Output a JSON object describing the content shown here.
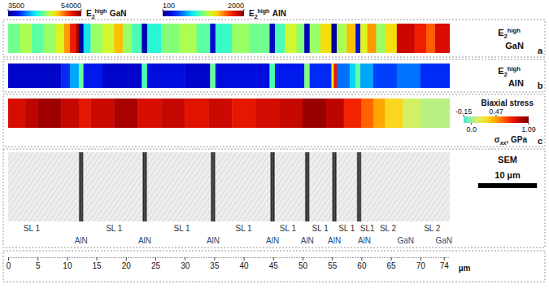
{
  "chart_data": {
    "type": "heatmap",
    "xlim": [
      0,
      75
    ],
    "xticks": [
      0,
      5,
      10,
      15,
      20,
      25,
      30,
      35,
      40,
      45,
      50,
      55,
      60,
      65,
      70,
      74
    ],
    "x_label": "µm",
    "panels": [
      {
        "letter": "a",
        "label": {
          "base": "E",
          "sub": "2",
          "sup": "high",
          "name": "GaN"
        },
        "color_range": [
          3500,
          54000
        ],
        "color_ticks": [
          3500,
          54000
        ],
        "cells": [
          [
            0,
            2,
            28000
          ],
          [
            2,
            4,
            31000
          ],
          [
            4,
            6,
            27000
          ],
          [
            6,
            8,
            30000
          ],
          [
            8,
            9.5,
            34000
          ],
          [
            9.5,
            10.5,
            40000
          ],
          [
            10.5,
            11.5,
            47000
          ],
          [
            11.5,
            12,
            52000
          ],
          [
            12,
            12.8,
            5000
          ],
          [
            12.8,
            14,
            22000
          ],
          [
            14,
            16,
            30000
          ],
          [
            16,
            18,
            33000
          ],
          [
            18,
            19.5,
            38000
          ],
          [
            19.5,
            21,
            30000
          ],
          [
            21,
            22.7,
            26000
          ],
          [
            22.7,
            23.6,
            6000
          ],
          [
            23.6,
            26,
            24000
          ],
          [
            26,
            29,
            29000
          ],
          [
            29,
            32,
            31000
          ],
          [
            32,
            34.3,
            27000
          ],
          [
            34.3,
            35.2,
            8000
          ],
          [
            35.2,
            38,
            25000
          ],
          [
            38,
            41,
            30000
          ],
          [
            41,
            44.4,
            28000
          ],
          [
            44.4,
            45.3,
            7000
          ],
          [
            45.3,
            47,
            26000
          ],
          [
            47,
            49,
            33000
          ],
          [
            49,
            50.3,
            29000
          ],
          [
            50.3,
            51.2,
            6000
          ],
          [
            51.2,
            53,
            30000
          ],
          [
            53,
            54.9,
            36000
          ],
          [
            54.9,
            55.8,
            5000
          ],
          [
            55.8,
            57.5,
            31000
          ],
          [
            57.5,
            59,
            38000
          ],
          [
            59,
            59.8,
            9000
          ],
          [
            59.8,
            61,
            34000
          ],
          [
            61,
            62.5,
            40000
          ],
          [
            62.5,
            64,
            30000
          ],
          [
            64,
            66,
            36000
          ],
          [
            66,
            69,
            50000
          ],
          [
            69,
            71,
            47000
          ],
          [
            71,
            72.5,
            43000
          ],
          [
            72.5,
            75,
            49000
          ]
        ]
      },
      {
        "letter": "b",
        "label": {
          "base": "E",
          "sub": "2",
          "sup": "high",
          "name": "AlN"
        },
        "color_range": [
          100,
          2000
        ],
        "color_ticks": [
          100,
          2000
        ],
        "cells": [
          [
            0,
            9,
            250
          ],
          [
            9,
            10.5,
            400
          ],
          [
            10.5,
            12,
            650
          ],
          [
            12,
            12.8,
            1000
          ],
          [
            12.8,
            16,
            350
          ],
          [
            16,
            22.7,
            250
          ],
          [
            22.7,
            23.6,
            950
          ],
          [
            23.6,
            30,
            300
          ],
          [
            30,
            34.3,
            250
          ],
          [
            34.3,
            35.2,
            1000
          ],
          [
            35.2,
            44.4,
            300
          ],
          [
            44.4,
            45.3,
            950
          ],
          [
            45.3,
            50.3,
            350
          ],
          [
            50.3,
            51.2,
            1050
          ],
          [
            51.2,
            54.9,
            400
          ],
          [
            54.9,
            55.3,
            1300
          ],
          [
            55.3,
            55.8,
            1750
          ],
          [
            55.8,
            58,
            550
          ],
          [
            58,
            59,
            750
          ],
          [
            59,
            59.8,
            1000
          ],
          [
            59.8,
            62,
            650
          ],
          [
            62,
            66,
            450
          ],
          [
            66,
            70,
            550
          ],
          [
            70,
            75,
            400
          ]
        ]
      },
      {
        "letter": "c",
        "title": "Biaxial stress",
        "unit": {
          "base": "σ",
          "sub": "xx",
          "rest": ", GPa"
        },
        "color_range": [
          -0.15,
          1.09
        ],
        "color_ticks": [
          -0.15,
          {
            "value": 0,
            "label": "0.0"
          },
          0.47,
          1.09
        ],
        "cells": [
          [
            0,
            3,
            0.85
          ],
          [
            3,
            5,
            0.92
          ],
          [
            5,
            9,
            1.0
          ],
          [
            9,
            12,
            0.9
          ],
          [
            12,
            14,
            0.8
          ],
          [
            14,
            18,
            0.88
          ],
          [
            18,
            22,
            0.98
          ],
          [
            22,
            26,
            0.85
          ],
          [
            26,
            30,
            0.9
          ],
          [
            30,
            34,
            0.82
          ],
          [
            34,
            38,
            0.88
          ],
          [
            38,
            42,
            0.8
          ],
          [
            42,
            46,
            0.86
          ],
          [
            46,
            50,
            0.9
          ],
          [
            50,
            54,
            1.02
          ],
          [
            54,
            57,
            0.92
          ],
          [
            57,
            60,
            0.75
          ],
          [
            60,
            62,
            0.6
          ],
          [
            62,
            64,
            0.45
          ],
          [
            64,
            67,
            0.3
          ],
          [
            67,
            70,
            0.12
          ],
          [
            70,
            75,
            0.05
          ]
        ]
      }
    ],
    "sem": {
      "title": "SEM",
      "scale_bar": {
        "length": 10,
        "label": "10 µm"
      },
      "interlayers": [
        [
          12,
          12.8
        ],
        [
          22.8,
          23.6
        ],
        [
          34.4,
          35.2
        ],
        [
          44.5,
          45.3
        ],
        [
          50.4,
          51.2
        ],
        [
          55,
          55.8
        ],
        [
          59.2,
          60
        ]
      ],
      "labels": [
        {
          "text": "SL 1",
          "x": 4,
          "row": 1
        },
        {
          "text": "SL 1",
          "x": 18,
          "row": 1
        },
        {
          "text": "SL 1",
          "x": 29.5,
          "row": 1
        },
        {
          "text": "SL 1",
          "x": 40,
          "row": 1
        },
        {
          "text": "SL 1",
          "x": 47.5,
          "row": 1
        },
        {
          "text": "SL 1",
          "x": 53,
          "row": 1
        },
        {
          "text": "SL 1",
          "x": 57.5,
          "row": 1
        },
        {
          "text": "SL1",
          "x": 61,
          "row": 1
        },
        {
          "text": "SL 2",
          "x": 64.5,
          "row": 1
        },
        {
          "text": "SL 2",
          "x": 72,
          "row": 1
        },
        {
          "text": "AlN",
          "x": 12.4,
          "row": 2
        },
        {
          "text": "AlN",
          "x": 23.2,
          "row": 2
        },
        {
          "text": "AlN",
          "x": 34.8,
          "row": 2
        },
        {
          "text": "AlN",
          "x": 44.9,
          "row": 2
        },
        {
          "text": "AlN",
          "x": 50.8,
          "row": 2
        },
        {
          "text": "AlN",
          "x": 55.4,
          "row": 2
        },
        {
          "text": "AlN",
          "x": 60.5,
          "row": 2
        },
        {
          "text": "GaN",
          "x": 67.5,
          "row": 2
        },
        {
          "text": "GaN",
          "x": 74,
          "row": 2
        }
      ]
    }
  }
}
